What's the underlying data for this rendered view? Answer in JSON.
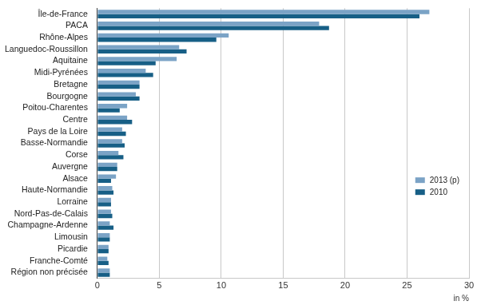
{
  "chart_data": {
    "type": "bar",
    "orientation": "horizontal",
    "categories": [
      "Île-de-France",
      "PACA",
      "Rhône-Alpes",
      "Languedoc-Roussillon",
      "Aquitaine",
      "Midi-Pyrénées",
      "Bretagne",
      "Bourgogne",
      "Poitou-Charentes",
      "Centre",
      "Pays de la Loire",
      "Basse-Normandie",
      "Corse",
      "Auvergne",
      "Alsace",
      "Haute-Normandie",
      "Lorraine",
      "Nord-Pas-de-Calais",
      "Champagne-Ardenne",
      "Limousin",
      "Picardie",
      "Franche-Comté",
      "Région non précisée"
    ],
    "series": [
      {
        "name": "2013 (p)",
        "color": "#7ba3c6",
        "values": [
          26.8,
          17.9,
          10.6,
          6.6,
          6.4,
          3.9,
          3.4,
          3.1,
          2.4,
          2.4,
          2.0,
          2.0,
          1.7,
          1.6,
          1.5,
          1.2,
          1.1,
          1.1,
          1.0,
          1.0,
          0.9,
          0.8,
          1.0
        ]
      },
      {
        "name": "2010",
        "color": "#175f86",
        "values": [
          26.0,
          18.7,
          9.6,
          7.2,
          4.7,
          4.5,
          3.4,
          3.4,
          1.8,
          2.8,
          2.3,
          2.2,
          2.1,
          1.6,
          1.1,
          1.3,
          1.1,
          1.2,
          1.3,
          1.0,
          0.9,
          0.9,
          1.0
        ]
      }
    ],
    "x_label": "in %",
    "xlim": [
      0,
      30
    ],
    "xticks": [
      0,
      5,
      10,
      15,
      20,
      25,
      30
    ],
    "grid": true,
    "legend": "right"
  }
}
